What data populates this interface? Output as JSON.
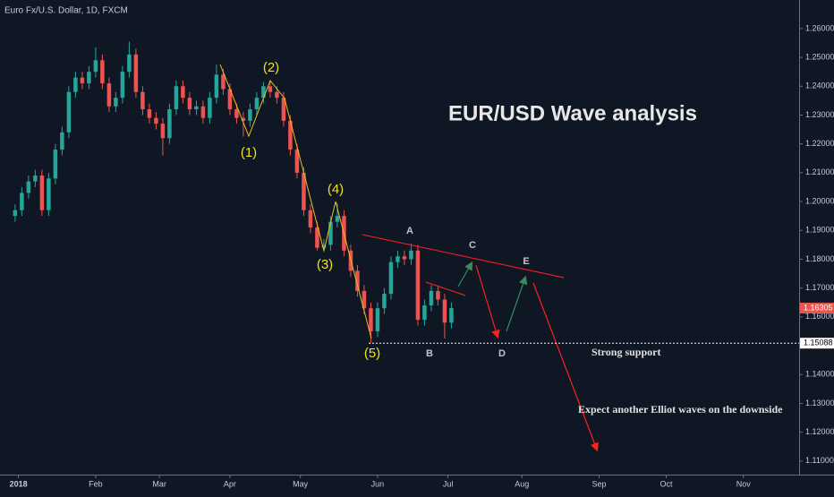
{
  "header": "Euro Fx/U.S. Dollar, 1D, FXCM",
  "chart_data": {
    "type": "candlestick",
    "title": "EUR/USD Wave analysis",
    "up_color": "#26a69a",
    "down_color": "#ef5350",
    "x": [
      0,
      2,
      4,
      6,
      8,
      10,
      12,
      14,
      16,
      18,
      20,
      22,
      24,
      26,
      28,
      30,
      32,
      34,
      36,
      38,
      40,
      42,
      44,
      46,
      48,
      50,
      52,
      54,
      56,
      58,
      60,
      62,
      64,
      66,
      68,
      70,
      72,
      74,
      76,
      78,
      80,
      82,
      84,
      86,
      88,
      90,
      92,
      94,
      96,
      98,
      100,
      102,
      104,
      106,
      108,
      110,
      112,
      114,
      116,
      118,
      120,
      122,
      124,
      126,
      128,
      130
    ],
    "open": [
      1.195,
      1.197,
      1.203,
      1.207,
      1.209,
      1.197,
      1.208,
      1.218,
      1.224,
      1.238,
      1.243,
      1.241,
      1.245,
      1.249,
      1.241,
      1.233,
      1.236,
      1.245,
      1.251,
      1.238,
      1.232,
      1.229,
      1.227,
      1.222,
      1.232,
      1.24,
      1.236,
      1.232,
      1.233,
      1.229,
      1.236,
      1.244,
      1.239,
      1.232,
      1.229,
      1.228,
      1.232,
      1.236,
      1.24,
      1.238,
      1.236,
      1.228,
      1.218,
      1.21,
      1.197,
      1.191,
      1.184,
      1.185,
      1.193,
      1.195,
      1.183,
      1.176,
      1.169,
      1.163,
      1.155,
      1.163,
      1.168,
      1.179,
      1.181,
      1.18,
      1.183,
      1.159,
      1.164,
      1.169,
      1.166,
      1.158
    ],
    "high": [
      1.199,
      1.205,
      1.209,
      1.211,
      1.211,
      1.21,
      1.22,
      1.226,
      1.24,
      1.245,
      1.245,
      1.247,
      1.2535,
      1.251,
      1.243,
      1.238,
      1.247,
      1.2555,
      1.253,
      1.24,
      1.234,
      1.231,
      1.229,
      1.234,
      1.242,
      1.242,
      1.238,
      1.235,
      1.235,
      1.238,
      1.2475,
      1.246,
      1.241,
      1.234,
      1.231,
      1.234,
      1.238,
      1.2415,
      1.242,
      1.24,
      1.238,
      1.23,
      1.22,
      1.212,
      1.199,
      1.193,
      1.187,
      1.195,
      1.1995,
      1.197,
      1.185,
      1.178,
      1.171,
      1.165,
      1.165,
      1.17,
      1.181,
      1.183,
      1.183,
      1.1855,
      1.185,
      1.166,
      1.171,
      1.171,
      1.168,
      1.165
    ],
    "low": [
      1.193,
      1.195,
      1.201,
      1.205,
      1.195,
      1.195,
      1.206,
      1.216,
      1.222,
      1.236,
      1.239,
      1.239,
      1.243,
      1.239,
      1.231,
      1.231,
      1.234,
      1.243,
      1.236,
      1.23,
      1.227,
      1.225,
      1.216,
      1.22,
      1.23,
      1.234,
      1.23,
      1.23,
      1.227,
      1.227,
      1.234,
      1.237,
      1.23,
      1.227,
      1.2225,
      1.226,
      1.23,
      1.234,
      1.236,
      1.234,
      1.226,
      1.216,
      1.208,
      1.195,
      1.189,
      1.183,
      1.1825,
      1.183,
      1.191,
      1.181,
      1.174,
      1.167,
      1.161,
      1.1509,
      1.153,
      1.161,
      1.166,
      1.177,
      1.178,
      1.178,
      1.157,
      1.157,
      1.162,
      1.164,
      1.1525,
      1.156
    ],
    "close": [
      1.197,
      1.203,
      1.207,
      1.209,
      1.197,
      1.208,
      1.218,
      1.224,
      1.238,
      1.243,
      1.241,
      1.245,
      1.249,
      1.241,
      1.233,
      1.236,
      1.245,
      1.251,
      1.238,
      1.232,
      1.229,
      1.227,
      1.222,
      1.232,
      1.24,
      1.236,
      1.232,
      1.233,
      1.229,
      1.236,
      1.244,
      1.239,
      1.232,
      1.229,
      1.228,
      1.232,
      1.236,
      1.24,
      1.238,
      1.236,
      1.228,
      1.218,
      1.21,
      1.197,
      1.191,
      1.184,
      1.185,
      1.193,
      1.195,
      1.183,
      1.176,
      1.169,
      1.163,
      1.155,
      1.163,
      1.168,
      1.179,
      1.181,
      1.18,
      1.183,
      1.159,
      1.164,
      1.169,
      1.166,
      1.158,
      1.16305
    ],
    "xlim": [
      -4.5,
      233.6
    ],
    "xticks": [
      {
        "value": 1,
        "label": "2018"
      },
      {
        "value": 24,
        "label": "Feb"
      },
      {
        "value": 43,
        "label": "Mar"
      },
      {
        "value": 64,
        "label": "Apr"
      },
      {
        "value": 85,
        "label": "May"
      },
      {
        "value": 108,
        "label": "Jun"
      },
      {
        "value": 129,
        "label": "Jul"
      },
      {
        "value": 151,
        "label": "Aug"
      },
      {
        "value": 174,
        "label": "Sep"
      },
      {
        "value": 194,
        "label": "Oct"
      },
      {
        "value": 217,
        "label": "Nov"
      }
    ],
    "ylim": [
      1.1053,
      1.2699
    ],
    "yticks": [
      {
        "value": 1.26,
        "label": "1.26000"
      },
      {
        "value": 1.25,
        "label": "1.25000"
      },
      {
        "value": 1.24,
        "label": "1.24000"
      },
      {
        "value": 1.23,
        "label": "1.23000"
      },
      {
        "value": 1.22,
        "label": "1.22000"
      },
      {
        "value": 1.21,
        "label": "1.21000"
      },
      {
        "value": 1.2,
        "label": "1.20000"
      },
      {
        "value": 1.19,
        "label": "1.19000"
      },
      {
        "value": 1.18,
        "label": "1.18000"
      },
      {
        "value": 1.17,
        "label": "1.17000"
      },
      {
        "value": 1.16,
        "label": "1.16000"
      },
      {
        "value": 1.15,
        "label": "1.15000"
      },
      {
        "value": 1.14,
        "label": "1.14000"
      },
      {
        "value": 1.13,
        "label": "1.13000"
      },
      {
        "value": 1.12,
        "label": "1.12000"
      },
      {
        "value": 1.11,
        "label": "1.11000"
      }
    ],
    "last_price": 1.16305,
    "support": 1.15088,
    "annotations": {
      "wave1": "(1)",
      "wave2": "(2)",
      "wave3": "(3)",
      "wave4": "(4)",
      "wave5": "(5)",
      "a": "A",
      "b": "B",
      "c": "C",
      "d": "D",
      "e": "E",
      "support_note": "Strong support",
      "outlook": "Expect another Elliot waves on the downside"
    }
  }
}
